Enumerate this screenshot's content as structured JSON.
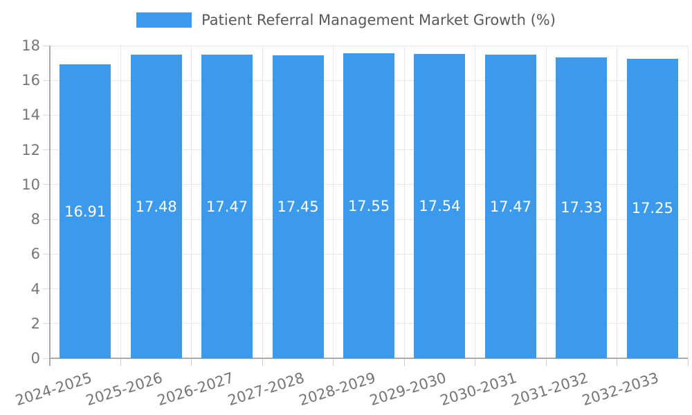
{
  "legend": {
    "items": [
      {
        "label": "Patient Referral Management Market Growth (%)",
        "swatch_color": "#3b9aec"
      }
    ]
  },
  "chart_data": {
    "type": "bar",
    "title": "Patient Referral Management Market Growth (%)",
    "categories": [
      "2024-2025",
      "2025-2026",
      "2026-2027",
      "2027-2028",
      "2028-2029",
      "2029-2030",
      "2030-2031",
      "2031-2032",
      "2032-2033"
    ],
    "values": [
      16.91,
      17.48,
      17.47,
      17.45,
      17.55,
      17.54,
      17.47,
      17.33,
      17.25
    ],
    "value_labels": [
      "16.91",
      "17.48",
      "17.47",
      "17.45",
      "17.55",
      "17.54",
      "17.47",
      "17.33",
      "17.25"
    ],
    "xlabel": "",
    "ylabel": "",
    "ylim": [
      0,
      18
    ],
    "yticks": [
      0,
      2,
      4,
      6,
      8,
      10,
      12,
      14,
      16,
      18
    ],
    "grid": true,
    "legend_position": "top-center",
    "colors": {
      "bar": "#3b9aec",
      "grid_line": "#e8e8e8",
      "axis_line": "#aaaaaa",
      "tick_label": "#757575",
      "bar_value_text": "#ffffff",
      "legend_text": "#595959"
    }
  }
}
